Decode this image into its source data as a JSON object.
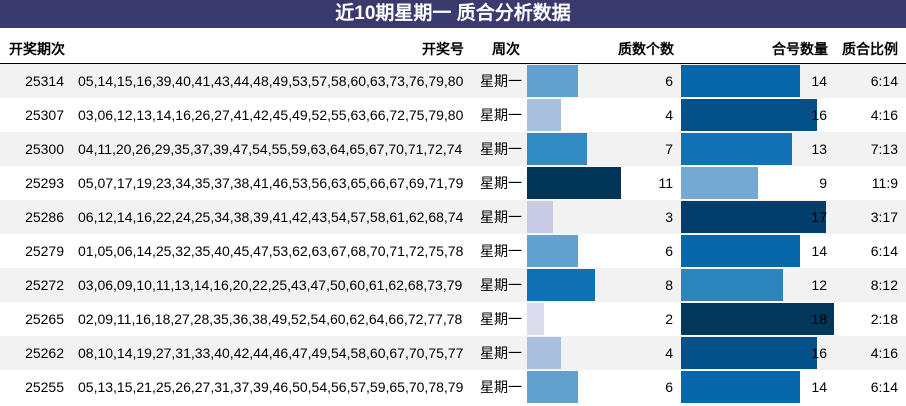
{
  "title": "近10期星期一 质合分析数据",
  "headers": {
    "issue": "开奖期次",
    "numbers": "开奖号",
    "weekday": "周次",
    "prime_count": "质数个数",
    "composite_count": "合号数量",
    "ratio": "质合比例"
  },
  "bar_scale_max": 18,
  "rows": [
    {
      "issue": "25314",
      "numbers": "05,14,15,16,39,40,41,43,44,48,49,53,57,58,60,63,73,76,79,80",
      "weekday": "星期一",
      "prime": 6,
      "composite": 14,
      "ratio": "6:14",
      "prime_color": "#62a0ce",
      "composite_color": "#0767a8"
    },
    {
      "issue": "25307",
      "numbers": "03,06,12,13,14,16,26,27,41,42,45,49,52,55,63,66,72,75,79,80",
      "weekday": "星期一",
      "prime": 4,
      "composite": 16,
      "ratio": "4:16",
      "prime_color": "#a9bfde",
      "composite_color": "#045189"
    },
    {
      "issue": "25300",
      "numbers": "04,11,20,26,29,35,37,39,47,54,55,59,63,64,65,67,70,71,72,74",
      "weekday": "星期一",
      "prime": 7,
      "composite": 13,
      "ratio": "7:13",
      "prime_color": "#338bc4",
      "composite_color": "#1372b4"
    },
    {
      "issue": "25293",
      "numbers": "05,07,17,19,23,34,35,37,38,41,46,53,56,63,65,66,67,69,71,79",
      "weekday": "星期一",
      "prime": 11,
      "composite": 9,
      "ratio": "11:9",
      "prime_color": "#003558",
      "composite_color": "#74a9d1"
    },
    {
      "issue": "25286",
      "numbers": "06,12,14,16,22,24,25,34,38,39,41,42,43,54,57,58,61,62,68,74",
      "weekday": "星期一",
      "prime": 3,
      "composite": 17,
      "ratio": "3:17",
      "prime_color": "#c9cbe5",
      "composite_color": "#023e6c"
    },
    {
      "issue": "25279",
      "numbers": "01,05,06,14,25,32,35,40,45,47,53,62,63,67,68,70,71,72,75,78",
      "weekday": "星期一",
      "prime": 6,
      "composite": 14,
      "ratio": "6:14",
      "prime_color": "#62a0ce",
      "composite_color": "#0767a8"
    },
    {
      "issue": "25272",
      "numbers": "03,06,09,10,11,13,14,16,20,22,25,43,47,50,60,61,62,68,73,79",
      "weekday": "星期一",
      "prime": 8,
      "composite": 12,
      "ratio": "8:12",
      "prime_color": "#0f71b3",
      "composite_color": "#2d85bf"
    },
    {
      "issue": "25265",
      "numbers": "02,09,11,16,18,27,28,35,36,38,49,52,54,60,62,64,66,72,77,78",
      "weekday": "星期一",
      "prime": 2,
      "composite": 18,
      "ratio": "2:18",
      "prime_color": "#dcdcee",
      "composite_color": "#02365a"
    },
    {
      "issue": "25262",
      "numbers": "08,10,14,19,27,31,33,40,42,44,46,47,49,54,58,60,67,70,75,77",
      "weekday": "星期一",
      "prime": 4,
      "composite": 16,
      "ratio": "4:16",
      "prime_color": "#a9bfde",
      "composite_color": "#045189"
    },
    {
      "issue": "25255",
      "numbers": "05,13,15,21,25,26,27,31,37,39,46,50,54,56,57,59,65,70,78,79",
      "weekday": "星期一",
      "prime": 6,
      "composite": 14,
      "ratio": "6:14",
      "prime_color": "#62a0ce",
      "composite_color": "#0767a8"
    }
  ]
}
